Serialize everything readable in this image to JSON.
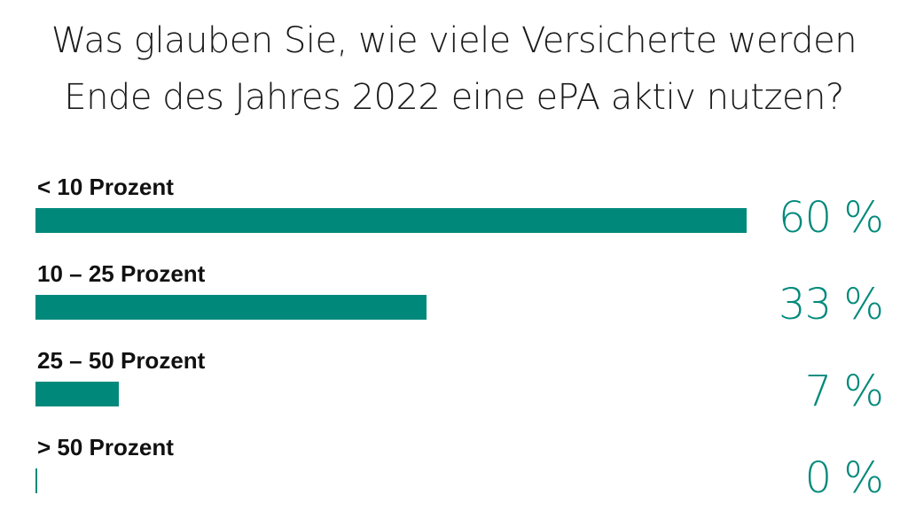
{
  "chart_data": {
    "type": "bar",
    "orientation": "horizontal",
    "title_lines": [
      "Was glauben Sie, wie viele Versicherte werden",
      "Ende des Jahres 2022 eine ePA aktiv nutzen?"
    ],
    "categories": [
      "< 10 Prozent",
      "10 – 25 Prozent",
      "25 – 50 Prozent",
      "> 50 Prozent"
    ],
    "values": [
      60,
      33,
      7,
      0
    ],
    "value_labels": [
      "60 %",
      "33 %",
      "7 %",
      "0 %"
    ],
    "xlim": [
      0,
      60
    ],
    "grid": false,
    "legend": "none",
    "bar_color": "#00897b"
  }
}
